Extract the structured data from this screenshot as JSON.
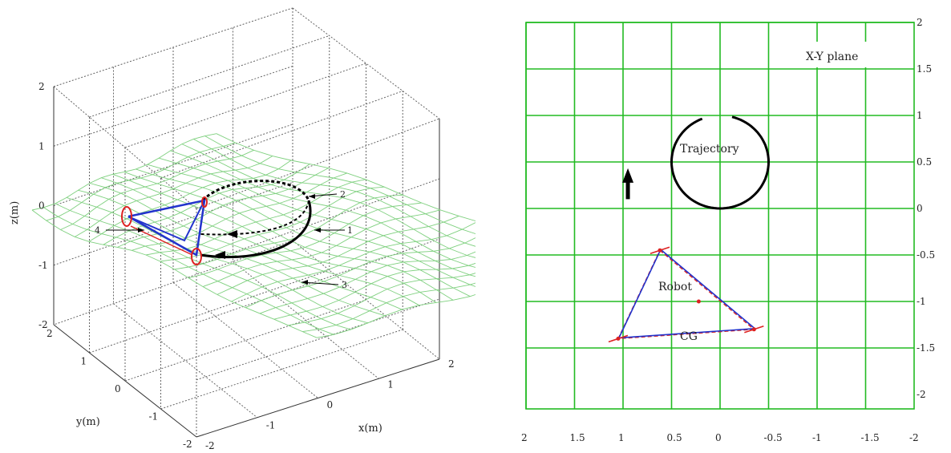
{
  "chart_data": [
    {
      "type": "scatter",
      "panel": "3d-perspective",
      "xlabel": "x(m)",
      "ylabel": "y(m)",
      "zlabel": "z(m)",
      "xticks": [
        "-2",
        "-1",
        "0",
        "1",
        "2"
      ],
      "yticks": [
        "-2",
        "-1",
        "0",
        "1",
        "2"
      ],
      "zticks": [
        "-2",
        "-1",
        "0",
        "1",
        "2"
      ],
      "xlim": [
        -2,
        2
      ],
      "ylim": [
        -2,
        2
      ],
      "zlim": [
        -2,
        2
      ],
      "grid": true,
      "annotations": [
        "1",
        "2",
        "3",
        "4"
      ],
      "colors": {
        "terrain": "#7fd07f",
        "trajectory": "#000000",
        "robot_links": "#2233cc",
        "robot_feet": "#dd2222"
      }
    },
    {
      "type": "line",
      "panel": "xy-plane",
      "title": "X-Y plane",
      "xticks": [
        "2",
        "1.5",
        "1",
        "0.5",
        "0",
        "-0.5",
        "-1",
        "-1.5",
        "-2"
      ],
      "yticks": [
        "2",
        "1.5",
        "1",
        "0.5",
        "0",
        "-0.5",
        "-1",
        "-1.5",
        "-2"
      ],
      "xlim": [
        2,
        -2
      ],
      "ylim": [
        -2,
        2
      ],
      "grid": true,
      "labels": {
        "trajectory": "Trajectory",
        "robot": "Robot",
        "cg": "CG"
      },
      "trajectory": {
        "center": [
          0,
          0.5
        ],
        "radius": 0.5
      },
      "robot_vertices": [
        [
          1.05,
          -1.4
        ],
        [
          0.62,
          -0.45
        ],
        [
          -0.35,
          -1.3
        ]
      ],
      "cg_point": [
        0.22,
        -1.0
      ],
      "direction_arrow": [
        [
          0.95,
          0.1
        ],
        [
          0.95,
          0.38
        ]
      ],
      "colors": {
        "grid": "#22bb22",
        "trajectory": "#000000",
        "robot_links": "#2233cc",
        "robot_feet": "#dd2222"
      }
    }
  ]
}
